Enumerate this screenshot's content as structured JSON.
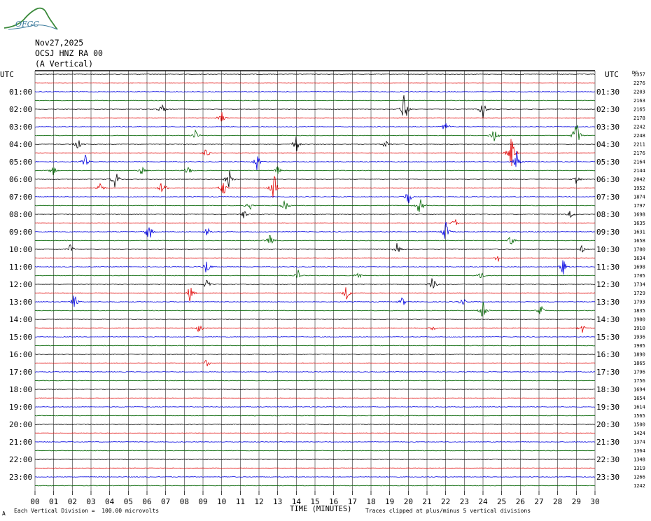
{
  "header": {
    "logo_text": "OFGC",
    "date": "Nov27,2025",
    "station": "OCSJ HNZ RA 00",
    "component": "(A Vertical)"
  },
  "labels": {
    "left_utc": "UTC",
    "right_utc": "UTC",
    "right_column_header": "DC",
    "x_title": "TIME (MINUTES)",
    "footer_left": "Each Vertical Division =  100.00 microvolts",
    "footer_right": "Traces clipped at plus/minus 5 vertical divisions",
    "footer_mark": "A"
  },
  "colors": {
    "trace_cycle": [
      "#000000",
      "#e00000",
      "#0000e0",
      "#006400"
    ],
    "grid": "#000000"
  },
  "chart_data": {
    "type": "line",
    "x_ticks": [
      "00",
      "01",
      "02",
      "03",
      "04",
      "05",
      "06",
      "07",
      "08",
      "09",
      "10",
      "11",
      "12",
      "13",
      "14",
      "15",
      "16",
      "17",
      "18",
      "19",
      "20",
      "21",
      "22",
      "23",
      "24",
      "25",
      "26",
      "27",
      "28",
      "29",
      "30"
    ],
    "xlim": [
      0,
      30
    ],
    "left_hour_labels": [
      "01:00",
      "02:00",
      "03:00",
      "04:00",
      "05:00",
      "06:00",
      "07:00",
      "08:00",
      "09:00",
      "10:00",
      "11:00",
      "12:00",
      "13:00",
      "14:00",
      "15:00",
      "16:00",
      "17:00",
      "18:00",
      "19:00",
      "20:00",
      "21:00",
      "22:00",
      "23:00"
    ],
    "right_hour_labels": [
      "01:30",
      "02:30",
      "03:30",
      "04:30",
      "05:30",
      "06:30",
      "07:30",
      "08:30",
      "09:30",
      "10:30",
      "11:30",
      "12:30",
      "13:30",
      "14:30",
      "15:30",
      "16:30",
      "17:30",
      "18:30",
      "19:30",
      "20:30",
      "21:30",
      "22:30",
      "23:30"
    ],
    "dc_offsets": [
      "2357",
      "2276",
      "2203",
      "2163",
      "2165",
      "2178",
      "2242",
      "2248",
      "2211",
      "2176",
      "2164",
      "2144",
      "2042",
      "1952",
      "1874",
      "1797",
      "1698",
      "1635",
      "1631",
      "1658",
      "1700",
      "1634",
      "1698",
      "1705",
      "1734",
      "1729",
      "1793",
      "1835",
      "1900",
      "1910",
      "1936",
      "1905",
      "1890",
      "1865",
      "1796",
      "1756",
      "1694",
      "1654",
      "1614",
      "1565",
      "1500",
      "1424",
      "1374",
      "1364",
      "1348",
      "1319",
      "1266",
      "1242"
    ],
    "events": [
      {
        "trace": 4,
        "minute": 19.8,
        "amp": 5
      },
      {
        "trace": 4,
        "minute": 6.8,
        "amp": 1.5
      },
      {
        "trace": 4,
        "minute": 24.0,
        "amp": 2
      },
      {
        "trace": 5,
        "minute": 10.0,
        "amp": 1.5
      },
      {
        "trace": 6,
        "minute": 22.0,
        "amp": 1.5
      },
      {
        "trace": 7,
        "minute": 24.6,
        "amp": 2
      },
      {
        "trace": 7,
        "minute": 29.0,
        "amp": 4
      },
      {
        "trace": 7,
        "minute": 8.6,
        "amp": 1.2
      },
      {
        "trace": 8,
        "minute": 2.3,
        "amp": 1.5
      },
      {
        "trace": 8,
        "minute": 14.0,
        "amp": 2
      },
      {
        "trace": 8,
        "minute": 18.8,
        "amp": 1.2
      },
      {
        "trace": 9,
        "minute": 25.5,
        "amp": 5
      },
      {
        "trace": 9,
        "minute": 9.2,
        "amp": 1.5
      },
      {
        "trace": 10,
        "minute": 11.9,
        "amp": 2.5
      },
      {
        "trace": 10,
        "minute": 2.7,
        "amp": 1.5
      },
      {
        "trace": 10,
        "minute": 25.8,
        "amp": 2.5
      },
      {
        "trace": 11,
        "minute": 1.0,
        "amp": 1.2
      },
      {
        "trace": 11,
        "minute": 5.7,
        "amp": 1.2
      },
      {
        "trace": 11,
        "minute": 8.2,
        "amp": 1.2
      },
      {
        "trace": 11,
        "minute": 13.0,
        "amp": 1
      },
      {
        "trace": 12,
        "minute": 4.3,
        "amp": 2.5
      },
      {
        "trace": 12,
        "minute": 10.4,
        "amp": 2.5
      },
      {
        "trace": 12,
        "minute": 29.0,
        "amp": 1.2
      },
      {
        "trace": 13,
        "minute": 3.5,
        "amp": 1.5
      },
      {
        "trace": 13,
        "minute": 6.8,
        "amp": 2.5
      },
      {
        "trace": 13,
        "minute": 12.8,
        "amp": 4
      },
      {
        "trace": 13,
        "minute": 10.1,
        "amp": 2
      },
      {
        "trace": 14,
        "minute": 20.0,
        "amp": 2
      },
      {
        "trace": 15,
        "minute": 11.5,
        "amp": 1.2
      },
      {
        "trace": 15,
        "minute": 13.4,
        "amp": 1.5
      },
      {
        "trace": 15,
        "minute": 20.6,
        "amp": 2.5
      },
      {
        "trace": 16,
        "minute": 11.2,
        "amp": 1.2
      },
      {
        "trace": 16,
        "minute": 28.7,
        "amp": 1.2
      },
      {
        "trace": 17,
        "minute": 22.5,
        "amp": 1.2
      },
      {
        "trace": 18,
        "minute": 6.1,
        "amp": 2.5
      },
      {
        "trace": 18,
        "minute": 9.2,
        "amp": 1.5
      },
      {
        "trace": 18,
        "minute": 22.0,
        "amp": 2.5
      },
      {
        "trace": 19,
        "minute": 12.6,
        "amp": 1.5
      },
      {
        "trace": 19,
        "minute": 25.5,
        "amp": 1.5
      },
      {
        "trace": 20,
        "minute": 1.9,
        "amp": 1.2
      },
      {
        "trace": 20,
        "minute": 19.4,
        "amp": 1.5
      },
      {
        "trace": 20,
        "minute": 29.3,
        "amp": 1
      },
      {
        "trace": 21,
        "minute": 24.8,
        "amp": 1
      },
      {
        "trace": 22,
        "minute": 9.2,
        "amp": 2
      },
      {
        "trace": 22,
        "minute": 28.3,
        "amp": 2
      },
      {
        "trace": 23,
        "minute": 14.1,
        "amp": 1.2
      },
      {
        "trace": 23,
        "minute": 17.3,
        "amp": 1.2
      },
      {
        "trace": 23,
        "minute": 23.9,
        "amp": 1.2
      },
      {
        "trace": 24,
        "minute": 9.2,
        "amp": 1.5
      },
      {
        "trace": 24,
        "minute": 21.3,
        "amp": 2
      },
      {
        "trace": 25,
        "minute": 8.3,
        "amp": 2
      },
      {
        "trace": 25,
        "minute": 16.7,
        "amp": 2
      },
      {
        "trace": 26,
        "minute": 2.1,
        "amp": 2
      },
      {
        "trace": 26,
        "minute": 19.7,
        "amp": 1.2
      },
      {
        "trace": 26,
        "minute": 22.9,
        "amp": 1.2
      },
      {
        "trace": 27,
        "minute": 24.0,
        "amp": 2.5
      },
      {
        "trace": 27,
        "minute": 27.1,
        "amp": 1.5
      },
      {
        "trace": 29,
        "minute": 8.8,
        "amp": 1.2
      },
      {
        "trace": 29,
        "minute": 21.3,
        "amp": 1
      },
      {
        "trace": 29,
        "minute": 29.3,
        "amp": 1.2
      },
      {
        "trace": 33,
        "minute": 9.2,
        "amp": 1
      }
    ]
  }
}
